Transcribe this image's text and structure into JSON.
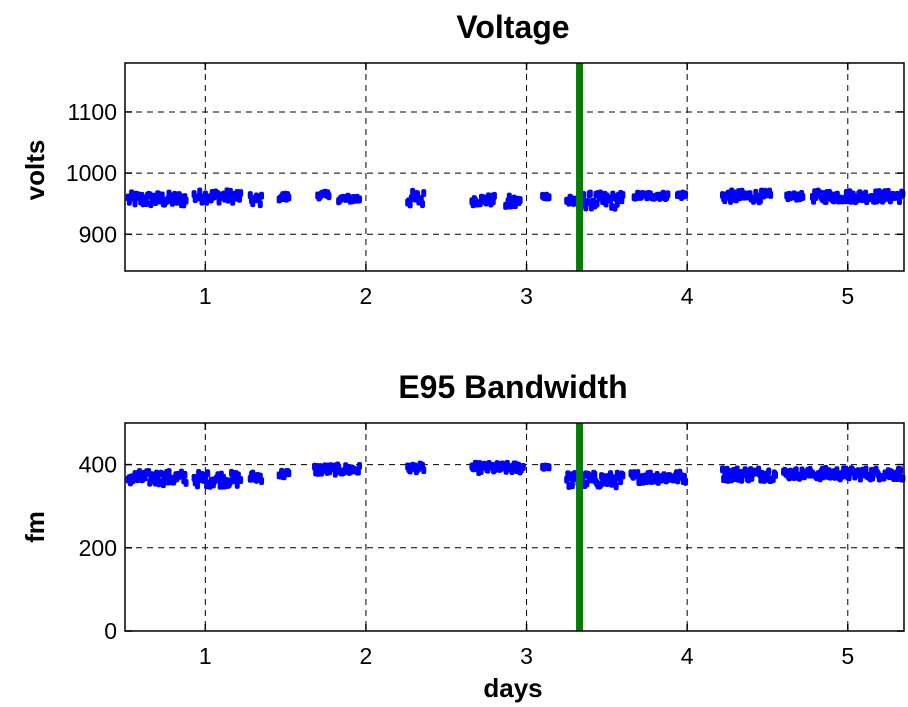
{
  "chart_data": [
    {
      "type": "scatter",
      "title": "Voltage",
      "xlabel": "",
      "ylabel": "volts",
      "xlim": [
        0.5,
        5.35
      ],
      "ylim": [
        840,
        1180
      ],
      "xticks": [
        1,
        2,
        3,
        4,
        5
      ],
      "yticks": [
        900,
        1000,
        1100
      ],
      "grid": true,
      "colors": {
        "points": "#0000ff",
        "marker_line": "#008000"
      },
      "marker_line_x": 3.33,
      "segments": [
        {
          "x0": 0.52,
          "x1": 0.88,
          "center": 957,
          "spread": 10
        },
        {
          "x0": 0.93,
          "x1": 1.22,
          "center": 962,
          "spread": 9
        },
        {
          "x0": 1.28,
          "x1": 1.35,
          "center": 956,
          "spread": 8
        },
        {
          "x0": 1.46,
          "x1": 1.52,
          "center": 961,
          "spread": 5
        },
        {
          "x0": 1.7,
          "x1": 1.77,
          "center": 964,
          "spread": 4
        },
        {
          "x0": 1.83,
          "x1": 1.96,
          "center": 958,
          "spread": 4
        },
        {
          "x0": 2.26,
          "x1": 2.36,
          "center": 958,
          "spread": 12
        },
        {
          "x0": 2.66,
          "x1": 2.8,
          "center": 956,
          "spread": 7
        },
        {
          "x0": 2.87,
          "x1": 2.96,
          "center": 952,
          "spread": 10
        },
        {
          "x0": 3.1,
          "x1": 3.14,
          "center": 962,
          "spread": 2
        },
        {
          "x0": 3.25,
          "x1": 3.6,
          "center": 955,
          "spread": 12
        },
        {
          "x0": 3.67,
          "x1": 3.88,
          "center": 963,
          "spread": 4
        },
        {
          "x0": 3.94,
          "x1": 3.99,
          "center": 964,
          "spread": 4
        },
        {
          "x0": 4.22,
          "x1": 4.52,
          "center": 962,
          "spread": 8
        },
        {
          "x0": 4.62,
          "x1": 4.72,
          "center": 962,
          "spread": 4
        },
        {
          "x0": 4.78,
          "x1": 5.35,
          "center": 962,
          "spread": 8
        }
      ]
    },
    {
      "type": "scatter",
      "title": "E95 Bandwidth",
      "xlabel": "days",
      "ylabel": "fm",
      "xlim": [
        0.5,
        5.35
      ],
      "ylim": [
        0,
        500
      ],
      "xticks": [
        1,
        2,
        3,
        4,
        5
      ],
      "yticks": [
        0,
        200,
        400
      ],
      "grid": true,
      "colors": {
        "points": "#0000ff",
        "marker_line": "#008000"
      },
      "marker_line_x": 3.33,
      "segments": [
        {
          "x0": 0.52,
          "x1": 0.88,
          "center": 368,
          "spread": 15
        },
        {
          "x0": 0.93,
          "x1": 1.22,
          "center": 365,
          "spread": 16
        },
        {
          "x0": 1.28,
          "x1": 1.35,
          "center": 370,
          "spread": 10
        },
        {
          "x0": 1.46,
          "x1": 1.52,
          "center": 377,
          "spread": 8
        },
        {
          "x0": 1.68,
          "x1": 1.96,
          "center": 388,
          "spread": 10
        },
        {
          "x0": 2.26,
          "x1": 2.36,
          "center": 392,
          "spread": 8
        },
        {
          "x0": 2.66,
          "x1": 2.98,
          "center": 392,
          "spread": 10
        },
        {
          "x0": 3.1,
          "x1": 3.14,
          "center": 395,
          "spread": 3
        },
        {
          "x0": 3.25,
          "x1": 3.6,
          "center": 363,
          "spread": 16
        },
        {
          "x0": 3.65,
          "x1": 3.99,
          "center": 370,
          "spread": 12
        },
        {
          "x0": 4.22,
          "x1": 4.55,
          "center": 377,
          "spread": 14
        },
        {
          "x0": 4.6,
          "x1": 4.78,
          "center": 378,
          "spread": 10
        },
        {
          "x0": 4.8,
          "x1": 5.35,
          "center": 378,
          "spread": 12
        }
      ]
    }
  ]
}
